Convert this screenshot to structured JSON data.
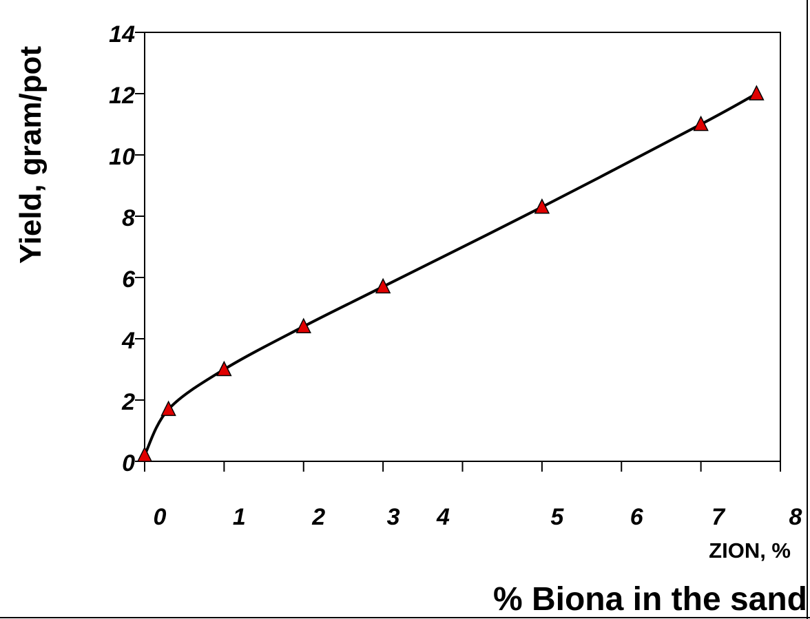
{
  "chart_data": {
    "type": "line",
    "title": "",
    "ylabel": "Yield, gram/pot",
    "xlabel": "% Biona in the sand",
    "xlabel_secondary": "ZION, %",
    "x_tick_labels": [
      "0",
      "1",
      "2",
      "3",
      "4",
      "5",
      "6",
      "7",
      "8"
    ],
    "y_tick_labels": [
      "0",
      "2",
      "4",
      "6",
      "8",
      "10",
      "12",
      "14"
    ],
    "xlim": [
      0,
      8
    ],
    "ylim": [
      0,
      14
    ],
    "grid": false,
    "legend": "none",
    "series": [
      {
        "x": [
          0,
          0.3,
          1,
          2,
          3,
          5,
          7,
          7.7
        ],
        "y": [
          0.2,
          1.7,
          3.0,
          4.4,
          5.7,
          8.3,
          11.0,
          12.0
        ],
        "marker": "triangle",
        "marker_color": "#e00000",
        "line_color": "#000000"
      }
    ]
  }
}
